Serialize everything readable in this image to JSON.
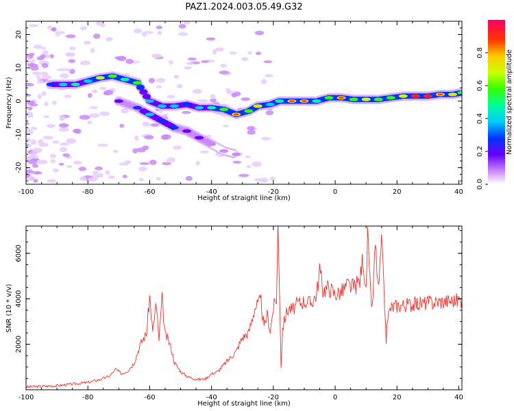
{
  "title": "PAZ1.2024.003.05.49.G32",
  "chart_data": [
    {
      "type": "heatmap",
      "xlabel": "Height of straight line (km)",
      "ylabel": "Frequency (Hz)",
      "xlim": [
        -100,
        41
      ],
      "ylim": [
        -25,
        24
      ],
      "xticks": [
        -100,
        -80,
        -60,
        -40,
        -20,
        0,
        20,
        40
      ],
      "yticks": [
        -20,
        -10,
        0,
        10,
        20
      ],
      "colorbar": {
        "label": "Normalized spectral amplitude",
        "range": [
          0,
          1
        ],
        "ticks": [
          "0.0",
          "0.2",
          "0.4",
          "0.6",
          "0.8"
        ],
        "colormap": "gist_rainbow_r"
      },
      "ridge": [
        {
          "x": -92,
          "y": 5,
          "v": 0.3
        },
        {
          "x": -88,
          "y": 5,
          "v": 0.45
        },
        {
          "x": -84,
          "y": 5,
          "v": 0.5
        },
        {
          "x": -80,
          "y": 6,
          "v": 0.45
        },
        {
          "x": -76,
          "y": 7,
          "v": 0.7
        },
        {
          "x": -72,
          "y": 7.5,
          "v": 0.65
        },
        {
          "x": -68,
          "y": 6.5,
          "v": 0.55
        },
        {
          "x": -64,
          "y": 5.5,
          "v": 0.6
        },
        {
          "x": -60,
          "y": 0,
          "v": 0.4
        },
        {
          "x": -56,
          "y": -1.5,
          "v": 0.45
        },
        {
          "x": -52,
          "y": -1.5,
          "v": 0.4
        },
        {
          "x": -48,
          "y": -1,
          "v": 0.35
        },
        {
          "x": -44,
          "y": -2,
          "v": 0.45
        },
        {
          "x": -40,
          "y": -2,
          "v": 0.5
        },
        {
          "x": -36,
          "y": -2.5,
          "v": 0.6
        },
        {
          "x": -32,
          "y": -4,
          "v": 0.8
        },
        {
          "x": -28,
          "y": -3,
          "v": 0.6
        },
        {
          "x": -25,
          "y": -1.5,
          "v": 0.75
        },
        {
          "x": -21,
          "y": -1,
          "v": 0.45
        },
        {
          "x": -18,
          "y": 0,
          "v": 0.55
        },
        {
          "x": -14,
          "y": 0,
          "v": 0.85
        },
        {
          "x": -10,
          "y": 0,
          "v": 0.8
        },
        {
          "x": -6,
          "y": 0,
          "v": 0.55
        },
        {
          "x": -2,
          "y": 1,
          "v": 0.65
        },
        {
          "x": 2,
          "y": 1,
          "v": 0.8
        },
        {
          "x": 6,
          "y": 0.5,
          "v": 0.6
        },
        {
          "x": 10,
          "y": 0.5,
          "v": 0.7
        },
        {
          "x": 14,
          "y": 0.5,
          "v": 0.6
        },
        {
          "x": 18,
          "y": 1,
          "v": 0.65
        },
        {
          "x": 22,
          "y": 1.5,
          "v": 0.7
        },
        {
          "x": 26,
          "y": 1.5,
          "v": 0.9
        },
        {
          "x": 30,
          "y": 1.5,
          "v": 0.95
        },
        {
          "x": 34,
          "y": 2,
          "v": 0.8
        },
        {
          "x": 38,
          "y": 2,
          "v": 0.75
        },
        {
          "x": 41,
          "y": 2.5,
          "v": 0.6
        }
      ],
      "branch": [
        {
          "x": -70,
          "y": 0,
          "v": 0.2
        },
        {
          "x": -64,
          "y": -2,
          "v": 0.3
        },
        {
          "x": -60,
          "y": -4,
          "v": 0.4
        },
        {
          "x": -56,
          "y": -6,
          "v": 0.35
        },
        {
          "x": -52,
          "y": -8,
          "v": 0.35
        },
        {
          "x": -48,
          "y": -9,
          "v": 0.25
        },
        {
          "x": -44,
          "y": -11,
          "v": 0.2
        },
        {
          "x": -40,
          "y": -13,
          "v": 0.15
        },
        {
          "x": -36,
          "y": -15,
          "v": 0.1
        },
        {
          "x": -32,
          "y": -16,
          "v": 0.08
        }
      ]
    },
    {
      "type": "line",
      "xlabel": "Height of straight line (km)",
      "ylabel": "SNR (10 * v/v)",
      "xlim": [
        -100,
        41
      ],
      "ylim": [
        0,
        7200
      ],
      "xticks": [
        -100,
        -80,
        -60,
        -40,
        -20,
        0,
        20,
        40
      ],
      "yticks": [
        2000,
        4000,
        6000
      ],
      "color": "#e8302b",
      "series": [
        {
          "x": [
            -100,
            -95,
            -90,
            -85,
            -80,
            -76,
            -73,
            -71,
            -69,
            -67,
            -65,
            -63,
            -61,
            -60,
            -59,
            -58,
            -57,
            -56,
            -55,
            -54,
            -53,
            -52,
            -50,
            -48,
            -46,
            -44,
            -42,
            -40,
            -38,
            -36,
            -34,
            -32,
            -30,
            -28,
            -26,
            -24,
            -23,
            -22,
            -21,
            -20,
            -19,
            -18.5,
            -18,
            -17.5,
            -17,
            -16,
            -15,
            -14,
            -12,
            -10,
            -8,
            -6,
            -5,
            -4,
            -2,
            0,
            2,
            4,
            6,
            8,
            9,
            10,
            10.5,
            11,
            12,
            13,
            14,
            15,
            16,
            16.5,
            17,
            18,
            20,
            24,
            28,
            32,
            36,
            41
          ],
          "values": [
            120,
            150,
            180,
            250,
            320,
            450,
            600,
            900,
            700,
            850,
            1200,
            2000,
            2500,
            4100,
            2500,
            3800,
            2200,
            4000,
            2400,
            2200,
            1800,
            1200,
            800,
            600,
            500,
            450,
            480,
            700,
            800,
            1100,
            1400,
            1700,
            2300,
            2500,
            3600,
            3900,
            2700,
            3300,
            2600,
            3600,
            4000,
            7200,
            4500,
            1000,
            2700,
            3300,
            3600,
            3500,
            3800,
            3900,
            3800,
            4200,
            5300,
            4400,
            4500,
            4200,
            4300,
            4600,
            4500,
            4800,
            5900,
            4200,
            7000,
            5100,
            3500,
            6400,
            4300,
            6500,
            3700,
            2200,
            3200,
            3600,
            3700,
            3750,
            3800,
            3850,
            3900,
            3950
          ]
        }
      ]
    }
  ]
}
